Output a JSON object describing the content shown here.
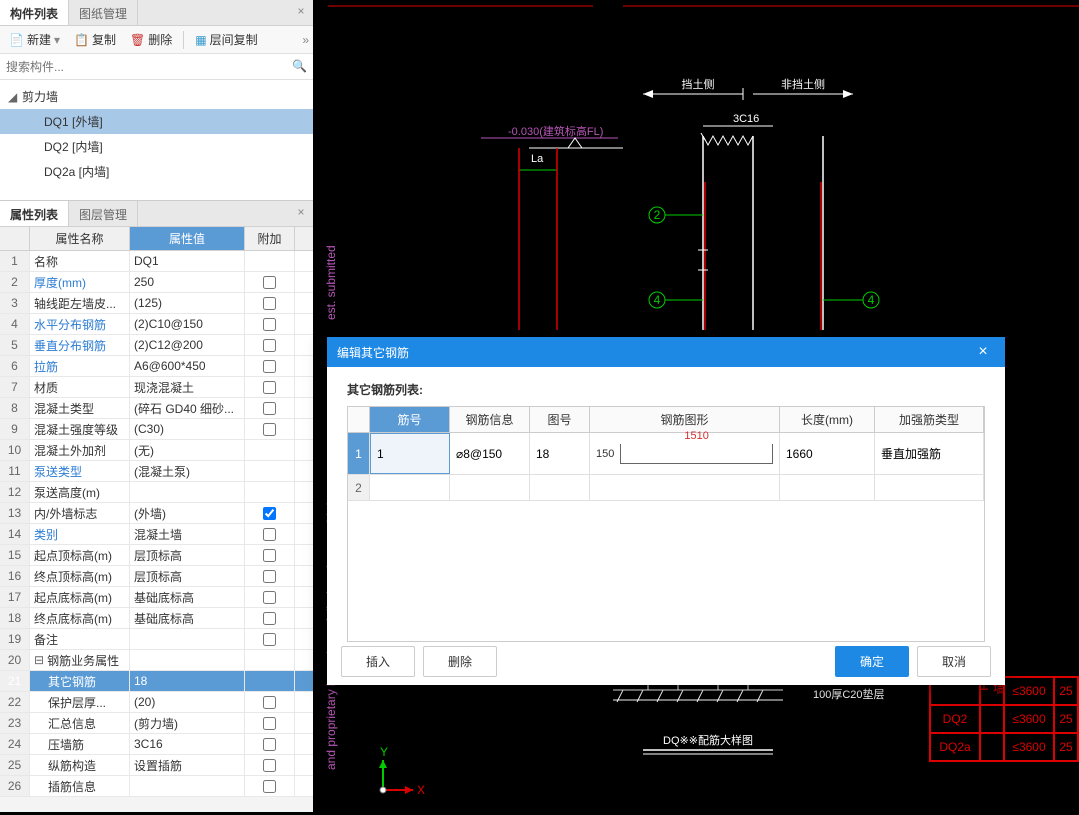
{
  "panels": {
    "componentList": {
      "tabs": [
        "构件列表",
        "图纸管理"
      ],
      "active": 0
    },
    "toolbar": {
      "new": "新建",
      "copy": "复制",
      "delete": "删除",
      "layerCopy": "层间复制"
    },
    "search": {
      "placeholder": "搜索构件..."
    },
    "tree": {
      "root": "剪力墙",
      "items": [
        "DQ1 [外墙]",
        "DQ2 [内墙]",
        "DQ2a [内墙]"
      ],
      "selected": 0
    },
    "propList": {
      "tabs": [
        "属性列表",
        "图层管理"
      ],
      "active": 0,
      "headers": {
        "name": "属性名称",
        "value": "属性值",
        "extra": "附加"
      }
    },
    "props": [
      {
        "n": "1",
        "name": "名称",
        "val": "DQ1",
        "link": false,
        "chk": null
      },
      {
        "n": "2",
        "name": "厚度(mm)",
        "val": "250",
        "link": true,
        "chk": false
      },
      {
        "n": "3",
        "name": "轴线距左墙皮...",
        "val": "(125)",
        "link": false,
        "chk": false
      },
      {
        "n": "4",
        "name": "水平分布钢筋",
        "val": "(2)C10@150",
        "link": true,
        "chk": false
      },
      {
        "n": "5",
        "name": "垂直分布钢筋",
        "val": "(2)C12@200",
        "link": true,
        "chk": false
      },
      {
        "n": "6",
        "name": "拉筋",
        "val": "A6@600*450",
        "link": true,
        "chk": false
      },
      {
        "n": "7",
        "name": "材质",
        "val": "现浇混凝土",
        "link": false,
        "chk": false
      },
      {
        "n": "8",
        "name": "混凝土类型",
        "val": "(碎石 GD40 细砂...",
        "link": false,
        "chk": false
      },
      {
        "n": "9",
        "name": "混凝土强度等级",
        "val": "(C30)",
        "link": false,
        "chk": false
      },
      {
        "n": "10",
        "name": "混凝土外加剂",
        "val": "(无)",
        "link": false,
        "chk": null
      },
      {
        "n": "11",
        "name": "泵送类型",
        "val": "(混凝土泵)",
        "link": true,
        "chk": null
      },
      {
        "n": "12",
        "name": "泵送高度(m)",
        "val": "",
        "link": false,
        "chk": null
      },
      {
        "n": "13",
        "name": "内/外墙标志",
        "val": "(外墙)",
        "link": false,
        "chk": true
      },
      {
        "n": "14",
        "name": "类别",
        "val": "混凝土墙",
        "link": true,
        "chk": false
      },
      {
        "n": "15",
        "name": "起点顶标高(m)",
        "val": "层顶标高",
        "link": false,
        "chk": false
      },
      {
        "n": "16",
        "name": "终点顶标高(m)",
        "val": "层顶标高",
        "link": false,
        "chk": false
      },
      {
        "n": "17",
        "name": "起点底标高(m)",
        "val": "基础底标高",
        "link": false,
        "chk": false
      },
      {
        "n": "18",
        "name": "终点底标高(m)",
        "val": "基础底标高",
        "link": false,
        "chk": false
      },
      {
        "n": "19",
        "name": "备注",
        "val": "",
        "link": false,
        "chk": false
      },
      {
        "n": "20",
        "name": "钢筋业务属性",
        "val": "",
        "link": false,
        "expand": true,
        "chk": null
      },
      {
        "n": "21",
        "name": "其它钢筋",
        "val": "18",
        "link": true,
        "indent": true,
        "sel": true,
        "edit": true,
        "chk": null
      },
      {
        "n": "22",
        "name": "保护层厚...",
        "val": "(20)",
        "link": false,
        "indent": true,
        "chk": false
      },
      {
        "n": "23",
        "name": "汇总信息",
        "val": "(剪力墙)",
        "link": false,
        "indent": true,
        "chk": false
      },
      {
        "n": "24",
        "name": "压墙筋",
        "val": "3C16",
        "link": false,
        "indent": true,
        "chk": false
      },
      {
        "n": "25",
        "name": "纵筋构造",
        "val": "设置插筋",
        "link": false,
        "indent": true,
        "chk": false
      },
      {
        "n": "26",
        "name": "插筋信息",
        "val": "",
        "link": false,
        "indent": true,
        "chk": false
      }
    ]
  },
  "dialog": {
    "title": "编辑其它钢筋",
    "listLabel": "其它钢筋列表:",
    "headers": [
      "筋号",
      "钢筋信息",
      "图号",
      "钢筋图形",
      "长度(mm)",
      "加强筋类型"
    ],
    "row1": {
      "num": "1",
      "id": "1",
      "info": "⌀8@150",
      "fig": "18",
      "s1": "150",
      "s2": "1510",
      "len": "1660",
      "type": "垂直加强筋"
    },
    "row2": {
      "num": "2"
    },
    "buttons": {
      "insert": "插入",
      "delete": "删除",
      "ok": "确定",
      "cancel": "取消"
    }
  },
  "cad": {
    "rebar": "3C16",
    "label1": "挡土侧",
    "label2": "非挡土侧",
    "la": "La",
    "fl": "-0.030(建筑标高FL)",
    "dq2": "DQ※※配筋大样图",
    "hatch": "100厚C20垫层"
  },
  "redTable": {
    "rows": [
      [
        "",
        "",
        "≤3600",
        "25"
      ],
      [
        "DQ2",
        "",
        "≤3600",
        "25"
      ],
      [
        "DQ2a",
        "",
        "≤3600",
        "25"
      ]
    ]
  }
}
